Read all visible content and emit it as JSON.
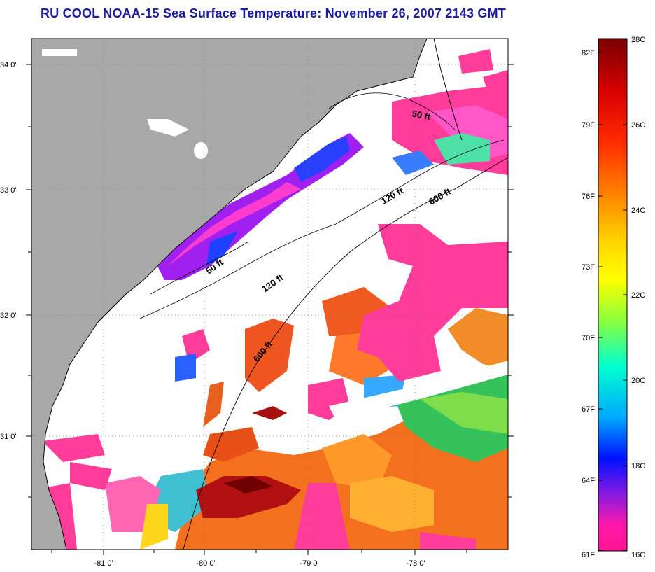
{
  "title": "RU COOL  NOAA-15  Sea Surface Temperature:  November 26, 2007 2143 GMT",
  "map": {
    "lat_labels": [
      "34 0'",
      "33 0'",
      "32 0'",
      "31 0'"
    ],
    "lon_labels": [
      "-81 0'",
      "-80 0'",
      "-79 0'",
      "-78 0'"
    ],
    "contour_labels": [
      "50 ft",
      "120 ft",
      "600 ft",
      "50 ft",
      "120 ft",
      "600 ft"
    ],
    "colors": {
      "land": "#a8a8a8",
      "cloud_mask": "#ffffff",
      "coast": "#000000"
    }
  },
  "colorbar": {
    "fahrenheit_labels": [
      "82F",
      "79F",
      "76F",
      "73F",
      "70F",
      "67F",
      "64F",
      "61F"
    ],
    "celsius_labels": [
      "28C",
      "26C",
      "24C",
      "22C",
      "20C",
      "18C",
      "16C"
    ],
    "range_c": [
      16,
      28
    ],
    "gradient_colors": [
      "#8b0000",
      "#e00000",
      "#ff6a00",
      "#ffcc00",
      "#ffff00",
      "#9cff2e",
      "#00ffcc",
      "#00a0ff",
      "#0000ff",
      "#7a00e0",
      "#ff1493"
    ]
  }
}
